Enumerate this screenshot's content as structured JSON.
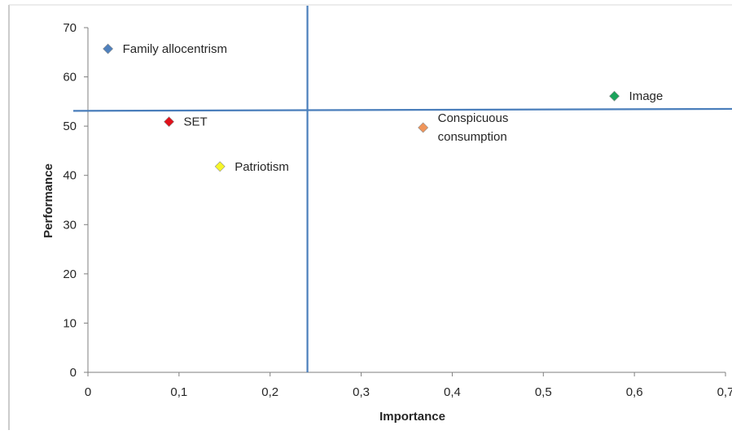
{
  "chart_data": {
    "type": "scatter",
    "title": "",
    "xlabel": "Importance",
    "ylabel": "Performance",
    "xlim": [
      0,
      0.7
    ],
    "ylim": [
      0,
      70
    ],
    "x_ticks": [
      "0",
      "0,1",
      "0,2",
      "0,3",
      "0,4",
      "0,5",
      "0,6",
      "0,7"
    ],
    "y_ticks": [
      "0",
      "10",
      "20",
      "30",
      "40",
      "50",
      "60",
      "70"
    ],
    "grid": false,
    "legend": "none",
    "reference_lines": {
      "vertical_x": 0.241,
      "horizontal_y": [
        53.1,
        53.5
      ]
    },
    "points": [
      {
        "label": "Family allocentrism",
        "x": 0.022,
        "y": 65.7,
        "color": "#4f81bd"
      },
      {
        "label": "SET",
        "x": 0.089,
        "y": 50.9,
        "color": "#e0101a"
      },
      {
        "label": "Patriotism",
        "x": 0.145,
        "y": 41.8,
        "color": "#f6f629"
      },
      {
        "label": [
          "Conspicuous",
          "consumption"
        ],
        "x": 0.368,
        "y": 49.7,
        "color": "#f0955a"
      },
      {
        "label": "Image",
        "x": 0.578,
        "y": 56.1,
        "color": "#1ba35b"
      }
    ],
    "colors": {
      "axis": "#7f7f7f",
      "reference_line": "#4a7ebb",
      "marker_stroke": "#8c8c8c"
    }
  }
}
